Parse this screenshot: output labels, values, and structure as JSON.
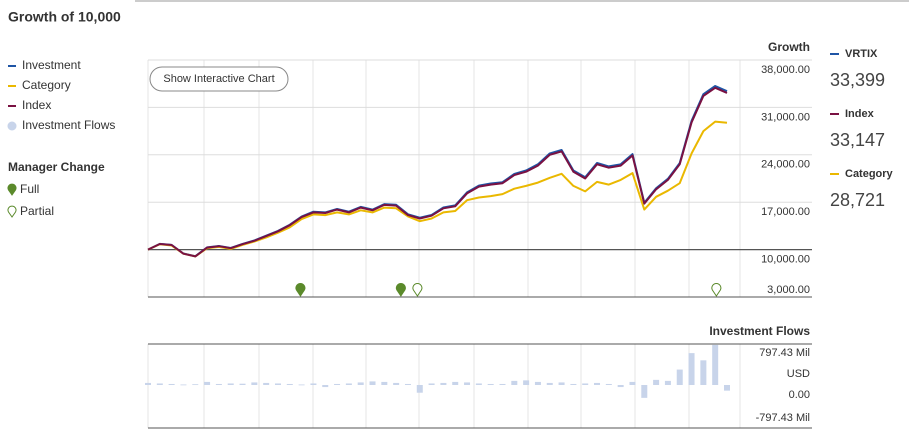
{
  "title": "Growth of 10,000",
  "chart_data": [
    {
      "type": "line",
      "y_axis_title": "Growth",
      "ylim": [
        3000,
        38000
      ],
      "yticks": [
        {
          "value": 38000,
          "label": "38,000.00"
        },
        {
          "value": 31000,
          "label": "31,000.00"
        },
        {
          "value": 24000,
          "label": "24,000.00"
        },
        {
          "value": 17000,
          "label": "17,000.00"
        },
        {
          "value": 10000,
          "label": "10,000.00"
        },
        {
          "value": 3000,
          "label": "3,000.00"
        }
      ],
      "baseline": 10000,
      "grid": true,
      "series": [
        {
          "name": "Investment",
          "color": "#1f55a5",
          "values": [
            10000,
            10840,
            10700,
            9420,
            9020,
            10320,
            10530,
            10230,
            10830,
            11340,
            12050,
            12760,
            13670,
            14880,
            15590,
            15490,
            16000,
            15600,
            16310,
            15910,
            16720,
            16620,
            15210,
            14710,
            15110,
            16220,
            16530,
            18440,
            19450,
            19760,
            19960,
            21170,
            21680,
            22590,
            24200,
            24710,
            21680,
            20670,
            22790,
            22290,
            22590,
            24110,
            16930,
            19050,
            20460,
            22780,
            29020,
            32950,
            34160,
            33399
          ]
        },
        {
          "name": "Category",
          "color": "#eab800",
          "values": [
            10000,
            10800,
            10600,
            9400,
            9000,
            10200,
            10400,
            10100,
            10700,
            11200,
            11800,
            12500,
            13300,
            14500,
            15200,
            15100,
            15500,
            15200,
            15800,
            15500,
            16200,
            16100,
            14900,
            14200,
            14600,
            15500,
            15700,
            17300,
            17700,
            17900,
            18200,
            19000,
            19400,
            19900,
            20600,
            21200,
            19400,
            18600,
            20000,
            19600,
            20300,
            21300,
            15900,
            17800,
            18700,
            19800,
            24200,
            27500,
            28900,
            28721
          ]
        },
        {
          "name": "Index",
          "color": "#7a1142",
          "values": [
            10000,
            10830,
            10680,
            9400,
            9000,
            10300,
            10500,
            10200,
            10800,
            11300,
            12000,
            12700,
            13600,
            14800,
            15500,
            15400,
            15900,
            15500,
            16200,
            15800,
            16600,
            16500,
            15100,
            14600,
            15000,
            16100,
            16400,
            18300,
            19300,
            19600,
            19800,
            21000,
            21500,
            22400,
            24000,
            24500,
            21500,
            20500,
            22600,
            22100,
            22400,
            23900,
            16800,
            18900,
            20300,
            22600,
            28800,
            32700,
            33900,
            33147
          ]
        }
      ],
      "manager_change": {
        "title": "Manager Change",
        "full": {
          "name": "Full",
          "color": "#5b8a2b",
          "x": [
            12.9,
            21.4
          ]
        },
        "partial": {
          "name": "Partial",
          "color": "#5b8a2b",
          "x": [
            22.8,
            48.1
          ]
        }
      },
      "button": "Show Interactive Chart"
    },
    {
      "type": "bar",
      "title": "Investment Flows",
      "ylim": [
        -797.43,
        797.43
      ],
      "yticks": [
        {
          "value": 797.43,
          "label": "797.43 Mil"
        },
        {
          "value": 0,
          "label": "0.00"
        },
        {
          "value": -797.43,
          "label": "-797.43 Mil"
        }
      ],
      "unit_label": "USD",
      "series": [
        {
          "name": "Investment Flows",
          "color": "#c8d4ea",
          "values": [
            40,
            30,
            20,
            10,
            15,
            60,
            20,
            30,
            25,
            50,
            40,
            30,
            20,
            10,
            30,
            -40,
            20,
            30,
            50,
            70,
            60,
            40,
            20,
            -150,
            30,
            40,
            60,
            50,
            30,
            20,
            20,
            80,
            90,
            60,
            40,
            50,
            20,
            30,
            40,
            20,
            -40,
            60,
            -250,
            100,
            80,
            300,
            620,
            480,
            780,
            -110
          ]
        }
      ]
    }
  ],
  "summary": [
    {
      "name": "VRTIX",
      "color": "#1f55a5",
      "value": 33399,
      "label": "33,399"
    },
    {
      "name": "Index",
      "color": "#7a1142",
      "value": 33147,
      "label": "33,147"
    },
    {
      "name": "Category",
      "color": "#eab800",
      "value": 28721,
      "label": "28,721"
    }
  ]
}
